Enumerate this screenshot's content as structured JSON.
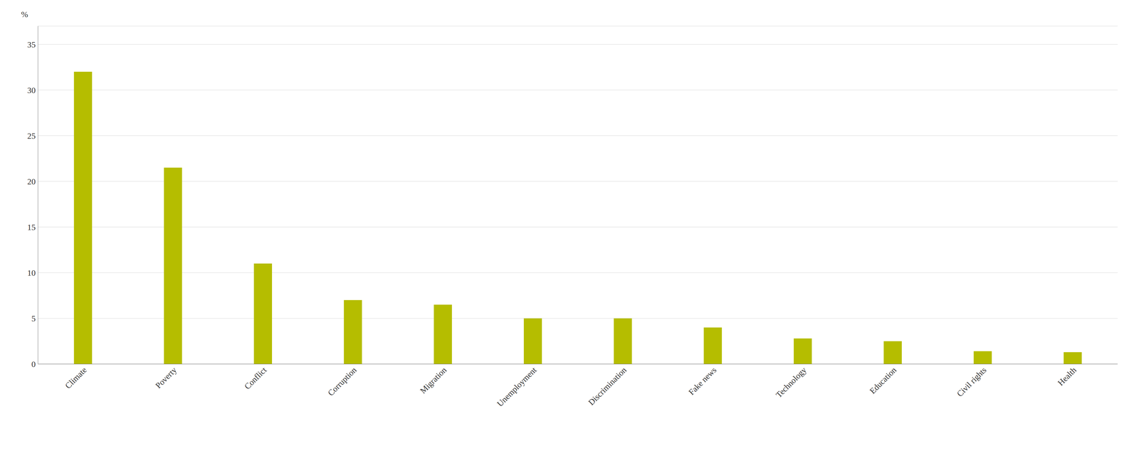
{
  "chart_data": {
    "type": "bar",
    "categories": [
      "Climate",
      "Poverty",
      "Conflict",
      "Corruption",
      "Migration",
      "Unemployment",
      "Discrimination",
      "Fake news",
      "Technology",
      "Education",
      "Civil rights",
      "Health"
    ],
    "values": [
      32.0,
      21.5,
      11.0,
      7.0,
      6.5,
      5.0,
      5.0,
      4.0,
      2.8,
      2.5,
      1.4,
      1.3
    ],
    "color": "#b5bd00",
    "ylabel": "%",
    "ylim": [
      0,
      37
    ],
    "yticks": [
      0,
      5,
      10,
      15,
      20,
      25,
      30,
      35
    ],
    "grid": true
  }
}
